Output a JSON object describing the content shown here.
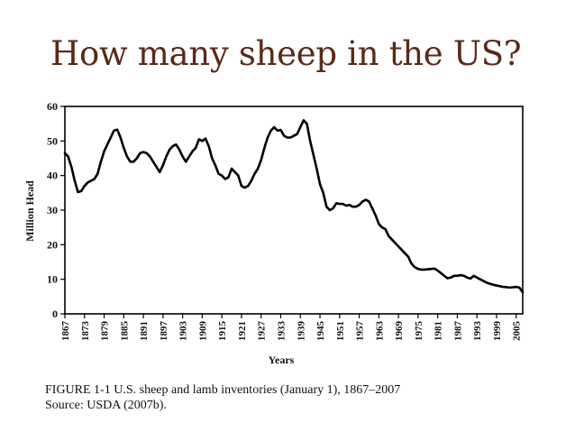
{
  "slide": {
    "title": "How many sheep in the US?"
  },
  "chart_data": {
    "type": "line",
    "title": "",
    "xlabel": "Years",
    "ylabel": "Million Head",
    "xlim": [
      1867,
      2007
    ],
    "ylim": [
      0,
      60
    ],
    "grid": false,
    "legend": "none",
    "line_color": "#000000",
    "y_ticks": [
      0,
      10,
      20,
      30,
      40,
      50,
      60
    ],
    "x_ticks": [
      1867,
      1873,
      1879,
      1885,
      1891,
      1897,
      1903,
      1909,
      1915,
      1921,
      1927,
      1933,
      1939,
      1945,
      1951,
      1957,
      1963,
      1969,
      1975,
      1981,
      1987,
      1993,
      1999,
      2005
    ],
    "series": [
      {
        "points": [
          [
            1867,
            46.5
          ],
          [
            1868,
            45.5
          ],
          [
            1869,
            42.5
          ],
          [
            1870,
            38.5
          ],
          [
            1871,
            35.2
          ],
          [
            1872,
            35.5
          ],
          [
            1873,
            37.0
          ],
          [
            1874,
            38.0
          ],
          [
            1875,
            38.5
          ],
          [
            1876,
            39.0
          ],
          [
            1877,
            40.5
          ],
          [
            1878,
            44.0
          ],
          [
            1879,
            47.0
          ],
          [
            1880,
            49.0
          ],
          [
            1881,
            51.0
          ],
          [
            1882,
            53.0
          ],
          [
            1883,
            53.3
          ],
          [
            1884,
            51.0
          ],
          [
            1885,
            48.0
          ],
          [
            1886,
            45.5
          ],
          [
            1887,
            44.0
          ],
          [
            1888,
            44.0
          ],
          [
            1889,
            45.0
          ],
          [
            1890,
            46.5
          ],
          [
            1891,
            46.8
          ],
          [
            1892,
            46.5
          ],
          [
            1893,
            45.5
          ],
          [
            1894,
            44.0
          ],
          [
            1895,
            42.5
          ],
          [
            1896,
            41.0
          ],
          [
            1897,
            43.0
          ],
          [
            1898,
            45.5
          ],
          [
            1899,
            47.5
          ],
          [
            1900,
            48.5
          ],
          [
            1901,
            49.0
          ],
          [
            1902,
            47.5
          ],
          [
            1903,
            45.5
          ],
          [
            1904,
            44.0
          ],
          [
            1905,
            45.5
          ],
          [
            1906,
            47.0
          ],
          [
            1907,
            48.0
          ],
          [
            1908,
            50.5
          ],
          [
            1909,
            50.0
          ],
          [
            1910,
            50.7
          ],
          [
            1911,
            48.5
          ],
          [
            1912,
            45.0
          ],
          [
            1913,
            43.0
          ],
          [
            1914,
            40.5
          ],
          [
            1915,
            40.0
          ],
          [
            1916,
            39.0
          ],
          [
            1917,
            39.5
          ],
          [
            1918,
            42.0
          ],
          [
            1919,
            41.0
          ],
          [
            1920,
            40.0
          ],
          [
            1921,
            37.0
          ],
          [
            1922,
            36.5
          ],
          [
            1923,
            37.0
          ],
          [
            1924,
            38.5
          ],
          [
            1925,
            40.5
          ],
          [
            1926,
            42.0
          ],
          [
            1927,
            44.5
          ],
          [
            1928,
            48.0
          ],
          [
            1929,
            51.0
          ],
          [
            1930,
            53.0
          ],
          [
            1931,
            54.0
          ],
          [
            1932,
            53.0
          ],
          [
            1933,
            53.2
          ],
          [
            1934,
            51.5
          ],
          [
            1935,
            51.0
          ],
          [
            1936,
            51.0
          ],
          [
            1937,
            51.5
          ],
          [
            1938,
            52.0
          ],
          [
            1939,
            54.0
          ],
          [
            1940,
            56.0
          ],
          [
            1941,
            55.0
          ],
          [
            1942,
            50.0
          ],
          [
            1943,
            46.0
          ],
          [
            1944,
            42.0
          ],
          [
            1945,
            37.5
          ],
          [
            1946,
            35.0
          ],
          [
            1947,
            31.0
          ],
          [
            1948,
            30.0
          ],
          [
            1949,
            30.5
          ],
          [
            1950,
            32.0
          ],
          [
            1951,
            31.8
          ],
          [
            1952,
            31.8
          ],
          [
            1953,
            31.3
          ],
          [
            1954,
            31.5
          ],
          [
            1955,
            31.0
          ],
          [
            1956,
            31.0
          ],
          [
            1957,
            31.5
          ],
          [
            1958,
            32.5
          ],
          [
            1959,
            33.0
          ],
          [
            1960,
            32.5
          ],
          [
            1961,
            30.5
          ],
          [
            1962,
            28.5
          ],
          [
            1963,
            26.0
          ],
          [
            1964,
            25.0
          ],
          [
            1965,
            24.5
          ],
          [
            1966,
            22.5
          ],
          [
            1967,
            21.5
          ],
          [
            1968,
            20.5
          ],
          [
            1969,
            19.5
          ],
          [
            1970,
            18.5
          ],
          [
            1971,
            17.5
          ],
          [
            1972,
            16.5
          ],
          [
            1973,
            14.5
          ],
          [
            1974,
            13.5
          ],
          [
            1975,
            13.0
          ],
          [
            1976,
            12.8
          ],
          [
            1977,
            12.8
          ],
          [
            1978,
            12.9
          ],
          [
            1979,
            13.0
          ],
          [
            1980,
            13.1
          ],
          [
            1981,
            12.5
          ],
          [
            1982,
            11.8
          ],
          [
            1983,
            11.0
          ],
          [
            1984,
            10.3
          ],
          [
            1985,
            10.5
          ],
          [
            1986,
            11.0
          ],
          [
            1987,
            11.0
          ],
          [
            1988,
            11.2
          ],
          [
            1989,
            11.0
          ],
          [
            1990,
            10.5
          ],
          [
            1991,
            10.2
          ],
          [
            1992,
            11.0
          ],
          [
            1993,
            10.5
          ],
          [
            1994,
            10.0
          ],
          [
            1995,
            9.5
          ],
          [
            1996,
            9.0
          ],
          [
            1997,
            8.7
          ],
          [
            1998,
            8.4
          ],
          [
            1999,
            8.2
          ],
          [
            2000,
            8.0
          ],
          [
            2001,
            7.8
          ],
          [
            2002,
            7.7
          ],
          [
            2003,
            7.6
          ],
          [
            2004,
            7.7
          ],
          [
            2005,
            7.8
          ],
          [
            2006,
            7.6
          ],
          [
            2007,
            6.2
          ]
        ]
      }
    ],
    "caption": {
      "line1": "FIGURE 1-1 U.S. sheep and lamb inventories (January 1), 1867–2007",
      "line2": "Source: USDA (2007b)."
    }
  }
}
